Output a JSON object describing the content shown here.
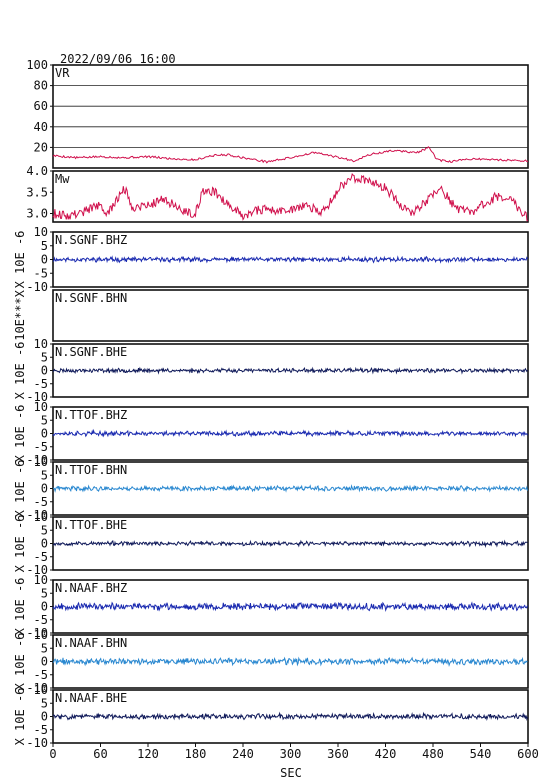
{
  "header": {
    "datetime": "2022/09/06 16:00"
  },
  "chart_data": {
    "type": "line",
    "x_axis": {
      "label": "SEC",
      "range": [
        0,
        600
      ],
      "ticks": [
        "0",
        "60",
        "120",
        "180",
        "240",
        "300",
        "360",
        "420",
        "480",
        "540",
        "600"
      ]
    },
    "panels": [
      {
        "id": "vr",
        "label": "VR",
        "ylim": [
          0,
          100
        ],
        "yticks": [
          "20",
          "40",
          "60",
          "80",
          "100"
        ],
        "grid": true,
        "color": "#d0104c",
        "kind": "vr",
        "keypoints": [
          [
            0,
            12
          ],
          [
            30,
            10
          ],
          [
            60,
            11
          ],
          [
            90,
            10
          ],
          [
            120,
            11
          ],
          [
            150,
            9
          ],
          [
            180,
            8
          ],
          [
            200,
            12
          ],
          [
            220,
            13
          ],
          [
            240,
            10
          ],
          [
            270,
            6
          ],
          [
            300,
            10
          ],
          [
            330,
            15
          ],
          [
            350,
            12
          ],
          [
            380,
            7
          ],
          [
            400,
            13
          ],
          [
            430,
            17
          ],
          [
            460,
            15
          ],
          [
            475,
            20
          ],
          [
            485,
            8
          ],
          [
            500,
            6
          ],
          [
            530,
            9
          ],
          [
            560,
            8
          ],
          [
            600,
            7
          ]
        ]
      },
      {
        "id": "mw",
        "label": "Mw",
        "ylim": [
          2.8,
          4.0
        ],
        "yticks": [
          "3.0",
          "3.5",
          "4.0"
        ],
        "grid": false,
        "color": "#d0104c",
        "kind": "mw",
        "keypoints": [
          [
            0,
            3.0
          ],
          [
            20,
            2.95
          ],
          [
            40,
            3.05
          ],
          [
            55,
            3.2
          ],
          [
            70,
            3.0
          ],
          [
            90,
            3.6
          ],
          [
            100,
            3.15
          ],
          [
            120,
            3.2
          ],
          [
            140,
            3.35
          ],
          [
            160,
            3.1
          ],
          [
            180,
            3.0
          ],
          [
            190,
            3.55
          ],
          [
            205,
            3.5
          ],
          [
            220,
            3.25
          ],
          [
            240,
            2.95
          ],
          [
            260,
            3.1
          ],
          [
            290,
            3.05
          ],
          [
            320,
            3.2
          ],
          [
            340,
            3.0
          ],
          [
            360,
            3.55
          ],
          [
            375,
            3.85
          ],
          [
            395,
            3.8
          ],
          [
            420,
            3.6
          ],
          [
            440,
            3.2
          ],
          [
            450,
            3.0
          ],
          [
            470,
            3.25
          ],
          [
            490,
            3.6
          ],
          [
            510,
            3.1
          ],
          [
            530,
            3.05
          ],
          [
            560,
            3.4
          ],
          [
            580,
            3.3
          ],
          [
            600,
            2.9
          ]
        ]
      },
      {
        "id": "sgnf-bhz",
        "label": "N.SGNF.BHZ",
        "ylabel": "X 10E -6",
        "ylim": [
          -10,
          10
        ],
        "yticks": [
          "10",
          "5",
          "0",
          "-5",
          "-10"
        ],
        "color": "#1a2ab0",
        "kind": "wave",
        "amp": 0.6,
        "seed": 11
      },
      {
        "id": "sgnf-bhn",
        "label": "N.SGNF.BHN",
        "ylabel": "10E***X",
        "ylim": [
          -10,
          10
        ],
        "yticks": [],
        "color": "#1a2ab0",
        "kind": "empty"
      },
      {
        "id": "sgnf-bhe",
        "label": "N.SGNF.BHE",
        "ylabel": "X 10E -6",
        "ylim": [
          -10,
          10
        ],
        "yticks": [
          "10",
          "5",
          "0",
          "-5",
          "-10"
        ],
        "color": "#101a5a",
        "kind": "wave",
        "amp": 0.55,
        "seed": 23
      },
      {
        "id": "ttof-bhz",
        "label": "N.TTOF.BHZ",
        "ylabel": "X 10E -6",
        "ylim": [
          -10,
          10
        ],
        "yticks": [
          "10",
          "5",
          "0",
          "-5",
          "-10"
        ],
        "color": "#1a2ab0",
        "kind": "wave",
        "amp": 0.6,
        "seed": 37
      },
      {
        "id": "ttof-bhn",
        "label": "N.TTOF.BHN",
        "ylabel": "X 10E -6",
        "ylim": [
          -10,
          10
        ],
        "yticks": [
          "10",
          "5",
          "0",
          "-5",
          "-10"
        ],
        "color": "#2a88d0",
        "kind": "wave",
        "amp": 0.65,
        "seed": 41
      },
      {
        "id": "ttof-bhe",
        "label": "N.TTOF.BHE",
        "ylabel": "X 10E -6",
        "ylim": [
          -10,
          10
        ],
        "yticks": [
          "10",
          "5",
          "0",
          "-5",
          "-10"
        ],
        "color": "#101a5a",
        "kind": "wave",
        "amp": 0.55,
        "seed": 53
      },
      {
        "id": "naaf-bhz",
        "label": "N.NAAF.BHZ",
        "ylabel": "X 10E -6",
        "ylim": [
          -10,
          10
        ],
        "yticks": [
          "10",
          "5",
          "0",
          "-5",
          "-10"
        ],
        "color": "#1a2ab0",
        "kind": "wave",
        "amp": 0.9,
        "seed": 67
      },
      {
        "id": "naaf-bhn",
        "label": "N.NAAF.BHN",
        "ylabel": "X 10E -6",
        "ylim": [
          -10,
          10
        ],
        "yticks": [
          "10",
          "5",
          "0",
          "-5",
          "-10"
        ],
        "color": "#2a88d0",
        "kind": "wave",
        "amp": 0.9,
        "seed": 71
      },
      {
        "id": "naaf-bhe",
        "label": "N.NAAF.BHE",
        "ylabel": "X 10E -6",
        "ylim": [
          -10,
          10
        ],
        "yticks": [
          "10",
          "5",
          "0",
          "-5",
          "-10"
        ],
        "color": "#101a5a",
        "kind": "wave",
        "amp": 0.7,
        "seed": 83
      }
    ]
  }
}
